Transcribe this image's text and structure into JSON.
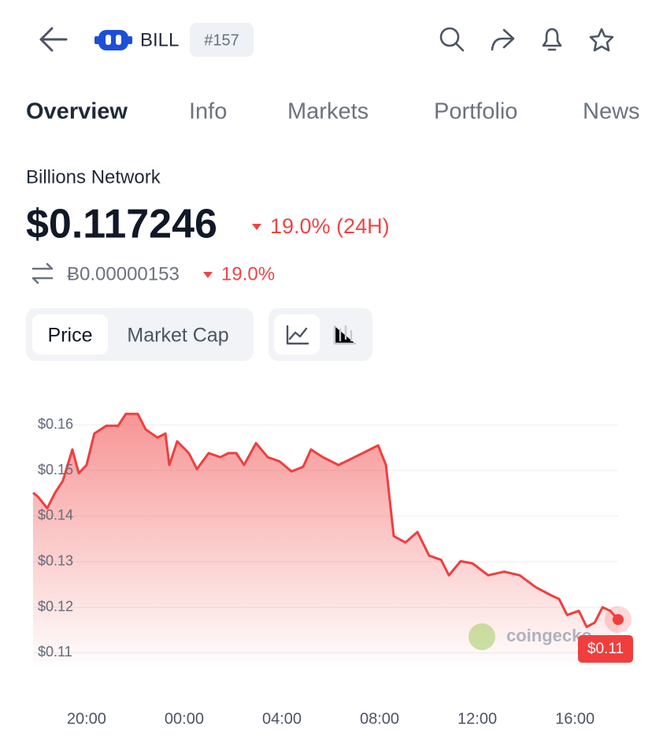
{
  "header": {
    "symbol": "BILL",
    "rank": "#157"
  },
  "tabs": [
    "Overview",
    "Info",
    "Markets",
    "Portfolio",
    "News"
  ],
  "coin": {
    "name": "Billions Network",
    "price": "$0.117246",
    "change_24h": "19.0% (24H)",
    "btc_price": "Ƀ0.00000153",
    "btc_change": "19.0%"
  },
  "toggle": [
    "Price",
    "Market Cap"
  ],
  "price_badge": "$0.11",
  "watermark": "coingecko",
  "chart_data": {
    "type": "area",
    "color": "#f03e3e",
    "x": [
      17.81,
      18.0,
      18.39,
      18.71,
      19.03,
      19.42,
      19.68,
      20,
      20.32,
      20.81,
      21.29,
      21.61,
      22.1,
      22.42,
      22.9,
      23.23,
      23.39,
      23.71,
      24.19,
      24.52,
      25,
      25.48,
      25.81,
      26.13,
      26.45,
      26.94,
      27.42,
      27.9,
      28.39,
      28.87,
      29.19,
      29.68,
      30.32,
      30.97,
      31.61,
      31.94,
      32.26,
      32.58,
      33.06,
      33.55,
      34.03,
      34.52,
      34.84,
      35.32,
      35.81,
      36.45,
      37.1,
      37.74,
      38.39,
      39.03,
      39.35,
      39.68,
      40.16,
      40.48,
      40.81,
      41.13,
      41.45,
      41.77
    ],
    "values": [
      0.1451,
      0.1443,
      0.1417,
      0.1451,
      0.1477,
      0.1546,
      0.1494,
      0.1512,
      0.1581,
      0.1598,
      0.1598,
      0.1624,
      0.1624,
      0.159,
      0.1572,
      0.1581,
      0.1512,
      0.1564,
      0.1538,
      0.1503,
      0.1538,
      0.1529,
      0.1538,
      0.1538,
      0.1512,
      0.156,
      0.1529,
      0.152,
      0.1498,
      0.1508,
      0.1546,
      0.1529,
      0.1512,
      0.1529,
      0.1546,
      0.1555,
      0.1512,
      0.1356,
      0.1342,
      0.1365,
      0.1313,
      0.1304,
      0.127,
      0.1301,
      0.1296,
      0.127,
      0.1278,
      0.127,
      0.1244,
      0.1226,
      0.1218,
      0.1183,
      0.1192,
      0.1157,
      0.1166,
      0.12,
      0.1192,
      0.1173
    ],
    "xlim": [
      17.81,
      41.77
    ],
    "xticks": [
      {
        "value": 20,
        "label": "20:00"
      },
      {
        "value": 24,
        "label": "00:00"
      },
      {
        "value": 28,
        "label": "04:00"
      },
      {
        "value": 32,
        "label": "08:00"
      },
      {
        "value": 36,
        "label": "12:00"
      },
      {
        "value": 40,
        "label": "16:00"
      }
    ],
    "ylim": [
      0.108,
      0.164
    ],
    "yticks": [
      {
        "value": 0.11,
        "label": "$0.11"
      },
      {
        "value": 0.12,
        "label": "$0.12"
      },
      {
        "value": 0.13,
        "label": "$0.13"
      },
      {
        "value": 0.14,
        "label": "$0.14"
      },
      {
        "value": 0.15,
        "label": "$0.15"
      },
      {
        "value": 0.16,
        "label": "$0.16"
      }
    ],
    "grid": true
  }
}
